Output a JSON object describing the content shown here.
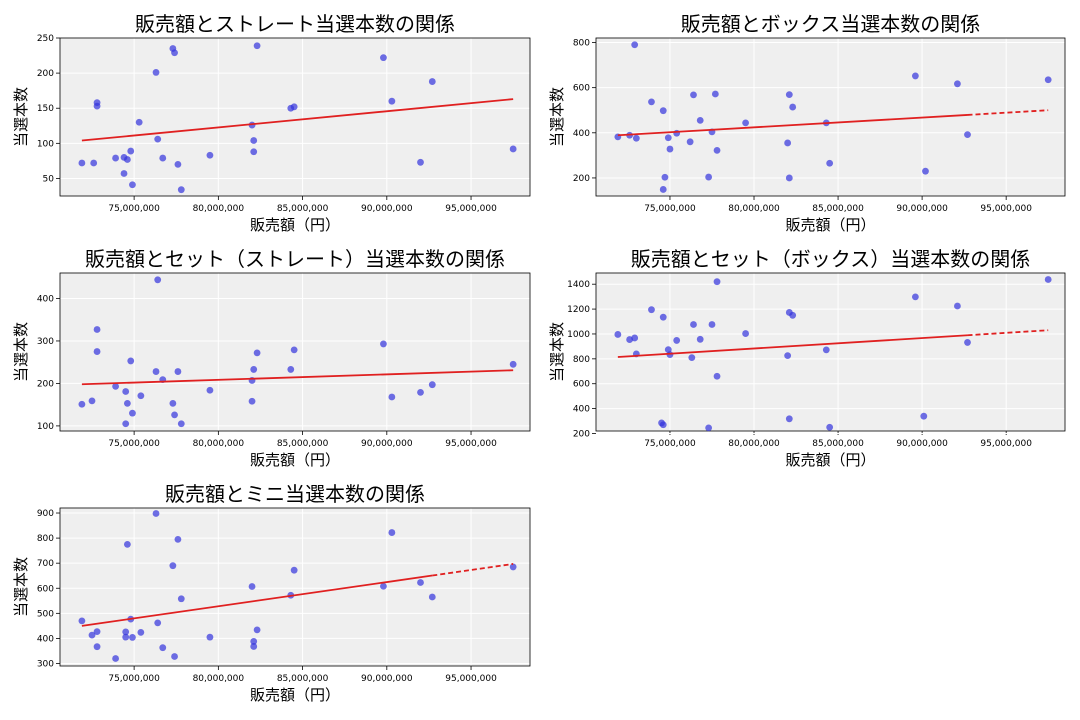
{
  "chart_data": [
    {
      "type": "scatter",
      "title": "販売額とストレート当選本数の関係",
      "xlabel": "販売額（円）",
      "ylabel": "当選本数",
      "xlim": [
        70600000,
        98500000
      ],
      "ylim": [
        25,
        250
      ],
      "xticks": [
        75000000,
        80000000,
        85000000,
        90000000,
        95000000
      ],
      "xtick_labels": [
        "75,000,000",
        "80,000,000",
        "85,000,000",
        "90,000,000",
        "95,000,000"
      ],
      "yticks": [
        50,
        100,
        150,
        200,
        250
      ],
      "ytick_labels": [
        "50",
        "100",
        "150",
        "200",
        "250"
      ],
      "grid": true,
      "points": [
        {
          "x": 71900000,
          "y": 72
        },
        {
          "x": 72600000,
          "y": 72
        },
        {
          "x": 72800000,
          "y": 158
        },
        {
          "x": 72800000,
          "y": 153
        },
        {
          "x": 73900000,
          "y": 79
        },
        {
          "x": 74400000,
          "y": 80
        },
        {
          "x": 74400000,
          "y": 57
        },
        {
          "x": 74600000,
          "y": 77
        },
        {
          "x": 74800000,
          "y": 89
        },
        {
          "x": 74900000,
          "y": 41
        },
        {
          "x": 75300000,
          "y": 130
        },
        {
          "x": 76300000,
          "y": 201
        },
        {
          "x": 76400000,
          "y": 106
        },
        {
          "x": 76700000,
          "y": 79
        },
        {
          "x": 77300000,
          "y": 235
        },
        {
          "x": 77400000,
          "y": 229
        },
        {
          "x": 77600000,
          "y": 70
        },
        {
          "x": 77800000,
          "y": 34
        },
        {
          "x": 79500000,
          "y": 83
        },
        {
          "x": 82000000,
          "y": 126
        },
        {
          "x": 82100000,
          "y": 104
        },
        {
          "x": 82100000,
          "y": 88
        },
        {
          "x": 82300000,
          "y": 239
        },
        {
          "x": 84300000,
          "y": 150
        },
        {
          "x": 84500000,
          "y": 152
        },
        {
          "x": 89800000,
          "y": 222
        },
        {
          "x": 90300000,
          "y": 160
        },
        {
          "x": 92000000,
          "y": 73
        },
        {
          "x": 92700000,
          "y": 188
        },
        {
          "x": 97500000,
          "y": 92
        }
      ],
      "trend": {
        "x": [
          71900000,
          97500000
        ],
        "y": [
          104,
          163
        ],
        "solid_until": 97500000
      }
    },
    {
      "type": "scatter",
      "title": "販売額とボックス当選本数の関係",
      "xlabel": "販売額（円）",
      "ylabel": "当選本数",
      "xlim": [
        70600000,
        98500000
      ],
      "ylim": [
        120,
        820
      ],
      "xticks": [
        75000000,
        80000000,
        85000000,
        90000000,
        95000000
      ],
      "xtick_labels": [
        "75,000,000",
        "80,000,000",
        "85,000,000",
        "90,000,000",
        "95,000,000"
      ],
      "yticks": [
        200,
        400,
        600,
        800
      ],
      "ytick_labels": [
        "200",
        "400",
        "600",
        "800"
      ],
      "grid": true,
      "points": [
        {
          "x": 71900000,
          "y": 382
        },
        {
          "x": 72600000,
          "y": 389
        },
        {
          "x": 72900000,
          "y": 790
        },
        {
          "x": 73000000,
          "y": 376
        },
        {
          "x": 73900000,
          "y": 537
        },
        {
          "x": 74600000,
          "y": 498
        },
        {
          "x": 74700000,
          "y": 203
        },
        {
          "x": 74600000,
          "y": 149
        },
        {
          "x": 74900000,
          "y": 378
        },
        {
          "x": 75000000,
          "y": 328
        },
        {
          "x": 75400000,
          "y": 398
        },
        {
          "x": 76200000,
          "y": 360
        },
        {
          "x": 76400000,
          "y": 568
        },
        {
          "x": 76800000,
          "y": 455
        },
        {
          "x": 77300000,
          "y": 204
        },
        {
          "x": 77500000,
          "y": 404
        },
        {
          "x": 77800000,
          "y": 322
        },
        {
          "x": 77700000,
          "y": 572
        },
        {
          "x": 79500000,
          "y": 444
        },
        {
          "x": 82000000,
          "y": 355
        },
        {
          "x": 82100000,
          "y": 200
        },
        {
          "x": 82100000,
          "y": 569
        },
        {
          "x": 82300000,
          "y": 514
        },
        {
          "x": 84300000,
          "y": 444
        },
        {
          "x": 84500000,
          "y": 265
        },
        {
          "x": 89600000,
          "y": 652
        },
        {
          "x": 90200000,
          "y": 230
        },
        {
          "x": 92100000,
          "y": 617
        },
        {
          "x": 92700000,
          "y": 392
        },
        {
          "x": 97500000,
          "y": 635
        }
      ],
      "trend": {
        "x": [
          71900000,
          97500000
        ],
        "y": [
          389,
          500
        ],
        "solid_until": 92700000
      }
    },
    {
      "type": "scatter",
      "title": "販売額とセット（ストレート）当選本数の関係",
      "xlabel": "販売額（円）",
      "ylabel": "当選本数",
      "xlim": [
        70600000,
        98500000
      ],
      "ylim": [
        88,
        460
      ],
      "xticks": [
        75000000,
        80000000,
        85000000,
        90000000,
        95000000
      ],
      "xtick_labels": [
        "75,000,000",
        "80,000,000",
        "85,000,000",
        "90,000,000",
        "95,000,000"
      ],
      "yticks": [
        100,
        200,
        300,
        400
      ],
      "ytick_labels": [
        "100",
        "200",
        "300",
        "400"
      ],
      "grid": true,
      "points": [
        {
          "x": 71900000,
          "y": 151
        },
        {
          "x": 72500000,
          "y": 159
        },
        {
          "x": 72800000,
          "y": 327
        },
        {
          "x": 72800000,
          "y": 275
        },
        {
          "x": 73900000,
          "y": 193
        },
        {
          "x": 74500000,
          "y": 181
        },
        {
          "x": 74600000,
          "y": 153
        },
        {
          "x": 74500000,
          "y": 105
        },
        {
          "x": 74800000,
          "y": 253
        },
        {
          "x": 74900000,
          "y": 130
        },
        {
          "x": 75400000,
          "y": 171
        },
        {
          "x": 76300000,
          "y": 228
        },
        {
          "x": 76400000,
          "y": 444
        },
        {
          "x": 76700000,
          "y": 209
        },
        {
          "x": 77300000,
          "y": 153
        },
        {
          "x": 77400000,
          "y": 126
        },
        {
          "x": 77600000,
          "y": 228
        },
        {
          "x": 77800000,
          "y": 105
        },
        {
          "x": 79500000,
          "y": 184
        },
        {
          "x": 82000000,
          "y": 158
        },
        {
          "x": 82100000,
          "y": 233
        },
        {
          "x": 82000000,
          "y": 207
        },
        {
          "x": 82300000,
          "y": 272
        },
        {
          "x": 84300000,
          "y": 233
        },
        {
          "x": 84500000,
          "y": 279
        },
        {
          "x": 89800000,
          "y": 293
        },
        {
          "x": 90300000,
          "y": 168
        },
        {
          "x": 92000000,
          "y": 179
        },
        {
          "x": 92700000,
          "y": 197
        },
        {
          "x": 97500000,
          "y": 245
        }
      ],
      "trend": {
        "x": [
          71900000,
          97500000
        ],
        "y": [
          198,
          231
        ],
        "solid_until": 97500000
      }
    },
    {
      "type": "scatter",
      "title": "販売額とセット（ボックス）当選本数の関係",
      "xlabel": "販売額（円）",
      "ylabel": "当選本数",
      "xlim": [
        70600000,
        98500000
      ],
      "ylim": [
        220,
        1490
      ],
      "xticks": [
        75000000,
        80000000,
        85000000,
        90000000,
        95000000
      ],
      "xtick_labels": [
        "75,000,000",
        "80,000,000",
        "85,000,000",
        "90,000,000",
        "95,000,000"
      ],
      "yticks": [
        200,
        400,
        600,
        800,
        1000,
        1200,
        1400
      ],
      "ytick_labels": [
        "200",
        "400",
        "600",
        "800",
        "1000",
        "1200",
        "1400"
      ],
      "grid": true,
      "points": [
        {
          "x": 71900000,
          "y": 996
        },
        {
          "x": 72600000,
          "y": 955
        },
        {
          "x": 72900000,
          "y": 968
        },
        {
          "x": 73000000,
          "y": 840
        },
        {
          "x": 73900000,
          "y": 1195
        },
        {
          "x": 74600000,
          "y": 1135
        },
        {
          "x": 74500000,
          "y": 285
        },
        {
          "x": 74600000,
          "y": 270
        },
        {
          "x": 74900000,
          "y": 874
        },
        {
          "x": 75000000,
          "y": 834
        },
        {
          "x": 75400000,
          "y": 948
        },
        {
          "x": 76300000,
          "y": 810
        },
        {
          "x": 76400000,
          "y": 1076
        },
        {
          "x": 76800000,
          "y": 957
        },
        {
          "x": 77300000,
          "y": 245
        },
        {
          "x": 77500000,
          "y": 1076
        },
        {
          "x": 77800000,
          "y": 1420
        },
        {
          "x": 77800000,
          "y": 660
        },
        {
          "x": 79500000,
          "y": 1003
        },
        {
          "x": 82000000,
          "y": 826
        },
        {
          "x": 82100000,
          "y": 1173
        },
        {
          "x": 82100000,
          "y": 318
        },
        {
          "x": 82300000,
          "y": 1150
        },
        {
          "x": 84300000,
          "y": 872
        },
        {
          "x": 84500000,
          "y": 250
        },
        {
          "x": 89600000,
          "y": 1298
        },
        {
          "x": 90100000,
          "y": 339
        },
        {
          "x": 92100000,
          "y": 1225
        },
        {
          "x": 92700000,
          "y": 932
        },
        {
          "x": 97500000,
          "y": 1438
        }
      ],
      "trend": {
        "x": [
          71900000,
          97500000
        ],
        "y": [
          815,
          1030
        ],
        "solid_until": 92700000
      }
    },
    {
      "type": "scatter",
      "title": "販売額とミニ当選本数の関係",
      "xlabel": "販売額（円）",
      "ylabel": "当選本数",
      "xlim": [
        70600000,
        98500000
      ],
      "ylim": [
        290,
        920
      ],
      "xticks": [
        75000000,
        80000000,
        85000000,
        90000000,
        95000000
      ],
      "xtick_labels": [
        "75,000,000",
        "80,000,000",
        "85,000,000",
        "90,000,000",
        "95,000,000"
      ],
      "yticks": [
        300,
        400,
        500,
        600,
        700,
        800,
        900
      ],
      "ytick_labels": [
        "300",
        "400",
        "500",
        "600",
        "700",
        "800",
        "900"
      ],
      "grid": true,
      "points": [
        {
          "x": 71900000,
          "y": 470
        },
        {
          "x": 72500000,
          "y": 413
        },
        {
          "x": 72800000,
          "y": 427
        },
        {
          "x": 72800000,
          "y": 367
        },
        {
          "x": 73900000,
          "y": 320
        },
        {
          "x": 74500000,
          "y": 426
        },
        {
          "x": 74500000,
          "y": 405
        },
        {
          "x": 74600000,
          "y": 775
        },
        {
          "x": 74800000,
          "y": 477
        },
        {
          "x": 74900000,
          "y": 404
        },
        {
          "x": 75400000,
          "y": 424
        },
        {
          "x": 76300000,
          "y": 898
        },
        {
          "x": 76400000,
          "y": 462
        },
        {
          "x": 76700000,
          "y": 363
        },
        {
          "x": 77300000,
          "y": 690
        },
        {
          "x": 77400000,
          "y": 328
        },
        {
          "x": 77600000,
          "y": 795
        },
        {
          "x": 77800000,
          "y": 558
        },
        {
          "x": 79500000,
          "y": 405
        },
        {
          "x": 82000000,
          "y": 607
        },
        {
          "x": 82100000,
          "y": 388
        },
        {
          "x": 82100000,
          "y": 368
        },
        {
          "x": 82300000,
          "y": 434
        },
        {
          "x": 84300000,
          "y": 572
        },
        {
          "x": 84500000,
          "y": 672
        },
        {
          "x": 89800000,
          "y": 608
        },
        {
          "x": 90300000,
          "y": 822
        },
        {
          "x": 92000000,
          "y": 623
        },
        {
          "x": 92700000,
          "y": 565
        },
        {
          "x": 97500000,
          "y": 685
        }
      ],
      "trend": {
        "x": [
          71900000,
          97500000
        ],
        "y": [
          450,
          697
        ],
        "solid_until": 92700000
      }
    }
  ],
  "colors": {
    "points": "#3333dd",
    "trend": "#e02020",
    "plot_bg": "#efefef",
    "grid": "#ffffff"
  }
}
